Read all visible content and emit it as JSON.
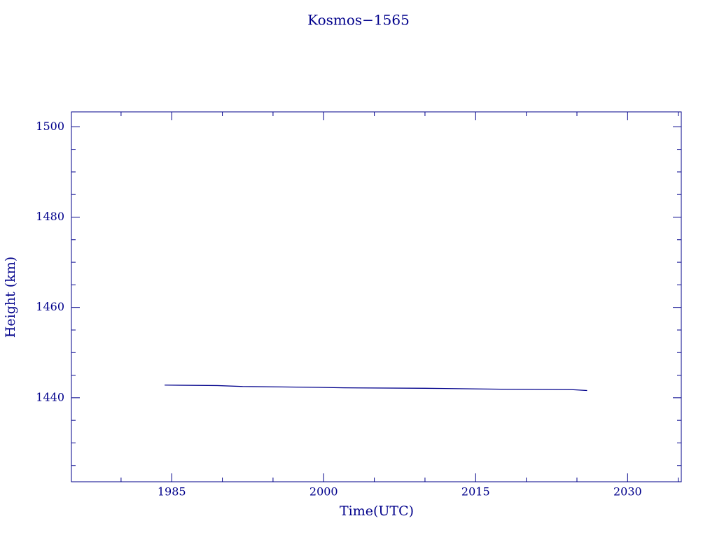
{
  "chart_data": {
    "type": "line",
    "title": "Kosmos−1565",
    "x_label": "Time(UTC)",
    "y_label": "Height (km)",
    "x": [
      1984.3,
      1989.5,
      1992.0,
      1999.5,
      2002.0,
      2010.0,
      2017.5,
      2024.5,
      2026.0
    ],
    "series": [
      {
        "color": "#00008b",
        "values": [
          1442.8,
          1442.7,
          1442.5,
          1442.3,
          1442.2,
          1442.1,
          1441.9,
          1441.8,
          1441.6
        ]
      }
    ],
    "xlim": [
      1975.1,
      2035.3
    ],
    "xticks": [
      1985,
      2000,
      2015,
      2030
    ],
    "xminorticks": [
      1980,
      1990,
      1995,
      2005,
      2010,
      2020,
      2025,
      2035
    ],
    "ylim": [
      1421.4,
      1503.3
    ],
    "yticks": [
      1440,
      1460,
      1480,
      1500
    ],
    "yminorticks": [
      1425,
      1430,
      1435,
      1445,
      1450,
      1455,
      1465,
      1470,
      1475,
      1485,
      1490,
      1495
    ],
    "grid": false,
    "axis_color": "#00008b"
  }
}
